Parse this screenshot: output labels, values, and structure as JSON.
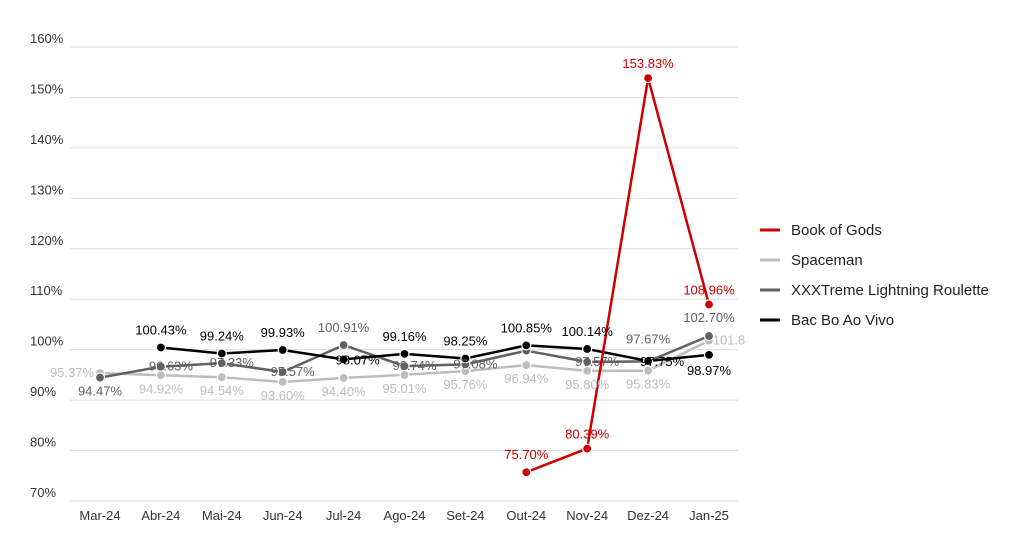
{
  "chart_data": {
    "type": "line",
    "categories": [
      "Mar-24",
      "Abr-24",
      "Mai-24",
      "Jun-24",
      "Jul-24",
      "Ago-24",
      "Set-24",
      "Out-24",
      "Nov-24",
      "Dez-24",
      "Jan-25"
    ],
    "y_ticks": [
      "70%",
      "80%",
      "90%",
      "100%",
      "110%",
      "120%",
      "130%",
      "140%",
      "150%",
      "160%"
    ],
    "ylim": [
      70,
      160
    ],
    "grid": true,
    "legend_position": "right",
    "series": [
      {
        "name": "Book of Gods",
        "color": "#cc0000",
        "values": [
          null,
          null,
          null,
          null,
          null,
          null,
          null,
          75.7,
          80.39,
          153.83,
          108.96
        ],
        "labels": [
          "",
          "",
          "",
          "",
          "",
          "",
          "",
          "75.70%",
          "80.39%",
          "153.83%",
          "108.96%"
        ]
      },
      {
        "name": "Spaceman",
        "color": "#bdbdbd",
        "values": [
          95.37,
          94.92,
          94.54,
          93.6,
          94.4,
          95.01,
          95.76,
          96.94,
          95.8,
          95.83,
          101.8
        ],
        "labels": [
          "95.37%",
          "94.92%",
          "94.54%",
          "93.60%",
          "94.40%",
          "95.01%",
          "95.76%",
          "96.94%",
          "95.80%",
          "95.83%",
          "101.8"
        ]
      },
      {
        "name": "XXXTreme Lightning Roulette",
        "color": "#616161",
        "values": [
          94.47,
          96.63,
          97.33,
          95.57,
          100.91,
          96.74,
          97.08,
          99.8,
          97.57,
          97.67,
          102.7
        ],
        "labels": [
          "94.47%",
          "96.63%",
          "97.33%",
          "95.57%",
          "100.91%",
          "96.74%",
          "97.08%",
          "",
          "97.57%",
          "97.67%",
          "102.70%"
        ]
      },
      {
        "name": "Bac Bo Ao Vivo",
        "color": "#000000",
        "values": [
          null,
          100.43,
          99.24,
          99.93,
          98.07,
          99.16,
          98.25,
          100.85,
          100.14,
          97.75,
          98.97
        ],
        "labels": [
          "",
          "100.43%",
          "99.24%",
          "99.93%",
          "98.07%",
          "99.16%",
          "98.25%",
          "100.85%",
          "100.14%",
          "97.75%",
          "98.97%"
        ]
      }
    ]
  }
}
